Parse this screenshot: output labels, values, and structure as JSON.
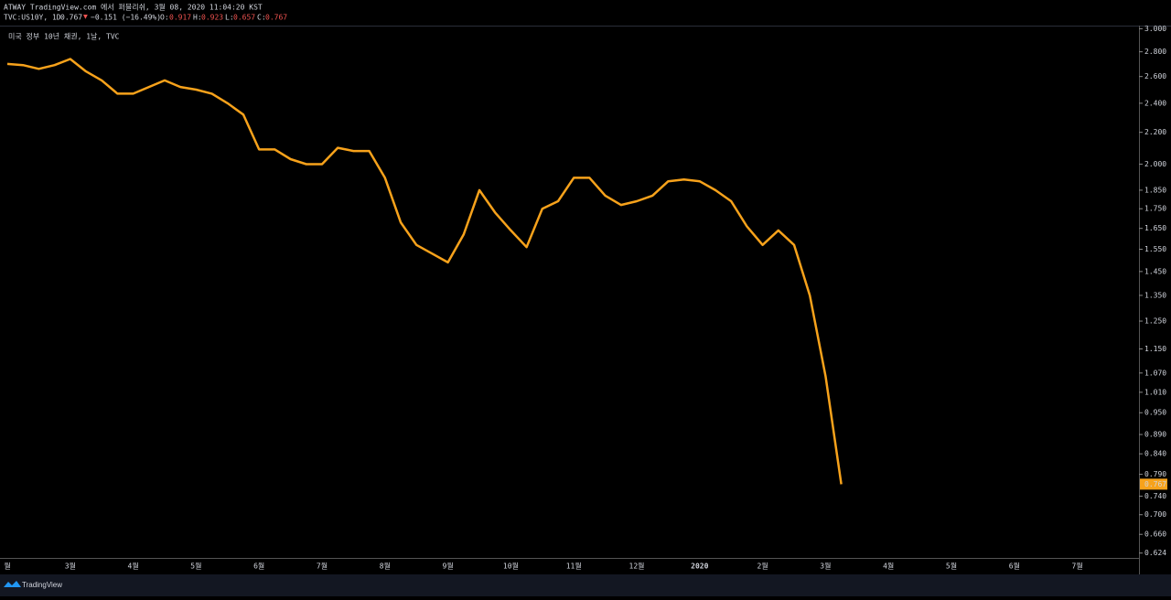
{
  "header": {
    "publisher": "ATWAY TradingView.com 에서 퍼블리쉬, 3월 08, 2020 11:04:20 KST",
    "symbol": "TVC:US10Y, 1D",
    "price": "0.767",
    "arrow": "▼",
    "change": "−0.151 (−16.49%)",
    "o_label": "O:",
    "o": "0.917",
    "h_label": "H:",
    "h": "0.923",
    "l_label": "L:",
    "l": "0.657",
    "c_label": "C:",
    "c": "0.767"
  },
  "chart_data": {
    "type": "line",
    "title": "미국 정부 10년 채권, 1날, TVC",
    "color": "#f7a21b",
    "log_scale": true,
    "categories": [
      "월",
      null,
      null,
      null,
      "3월",
      null,
      null,
      null,
      "4월",
      null,
      null,
      null,
      "5월",
      null,
      null,
      null,
      "6월",
      null,
      null,
      null,
      "7월",
      null,
      null,
      null,
      "8월",
      null,
      null,
      null,
      "9월",
      null,
      null,
      null,
      "10월",
      null,
      null,
      null,
      "11월",
      null,
      null,
      null,
      "12월",
      null,
      null,
      null,
      "2020",
      null,
      null,
      null,
      "2월",
      null,
      null,
      null,
      "3월",
      null,
      null,
      null,
      "4월",
      null,
      null,
      null,
      "5월",
      null,
      null,
      null,
      "6월",
      null,
      null,
      null,
      "7월",
      null,
      null,
      null
    ],
    "values": [
      2.7,
      2.69,
      2.66,
      2.69,
      2.74,
      2.64,
      2.57,
      2.47,
      2.47,
      2.52,
      2.57,
      2.52,
      2.5,
      2.47,
      2.4,
      2.32,
      2.09,
      2.09,
      2.03,
      2.0,
      2.0,
      2.1,
      2.08,
      2.08,
      1.92,
      1.68,
      1.57,
      1.53,
      1.49,
      1.62,
      1.85,
      1.73,
      1.64,
      1.56,
      1.75,
      1.79,
      1.92,
      1.92,
      1.82,
      1.77,
      1.79,
      1.82,
      1.9,
      1.91,
      1.9,
      1.85,
      1.79,
      1.66,
      1.57,
      1.64,
      1.57,
      1.35,
      1.06,
      0.767,
      null,
      null,
      null,
      null,
      null,
      null,
      null,
      null,
      null,
      null,
      null,
      null,
      null,
      null,
      null,
      null,
      null,
      null
    ],
    "last_price": "0.767",
    "ylim": [
      0.615,
      3.02
    ],
    "yticks": [
      {
        "value": 3.0,
        "label": "3.000"
      },
      {
        "value": 2.8,
        "label": "2.800"
      },
      {
        "value": 2.6,
        "label": "2.600"
      },
      {
        "value": 2.4,
        "label": "2.400"
      },
      {
        "value": 2.2,
        "label": "2.200"
      },
      {
        "value": 2.0,
        "label": "2.000"
      },
      {
        "value": 1.85,
        "label": "1.850"
      },
      {
        "value": 1.75,
        "label": "1.750"
      },
      {
        "value": 1.65,
        "label": "1.650"
      },
      {
        "value": 1.55,
        "label": "1.550"
      },
      {
        "value": 1.45,
        "label": "1.450"
      },
      {
        "value": 1.35,
        "label": "1.350"
      },
      {
        "value": 1.25,
        "label": "1.250"
      },
      {
        "value": 1.15,
        "label": "1.150"
      },
      {
        "value": 1.07,
        "label": "1.070"
      },
      {
        "value": 1.01,
        "label": "1.010"
      },
      {
        "value": 0.95,
        "label": "0.950"
      },
      {
        "value": 0.89,
        "label": "0.890"
      },
      {
        "value": 0.84,
        "label": "0.840"
      },
      {
        "value": 0.79,
        "label": "0.790"
      },
      {
        "value": 0.74,
        "label": "0.740"
      },
      {
        "value": 0.7,
        "label": "0.700"
      },
      {
        "value": 0.66,
        "label": "0.660"
      },
      {
        "value": 0.624,
        "label": "0.624"
      }
    ]
  },
  "footer": {
    "brand": "TradingView"
  }
}
